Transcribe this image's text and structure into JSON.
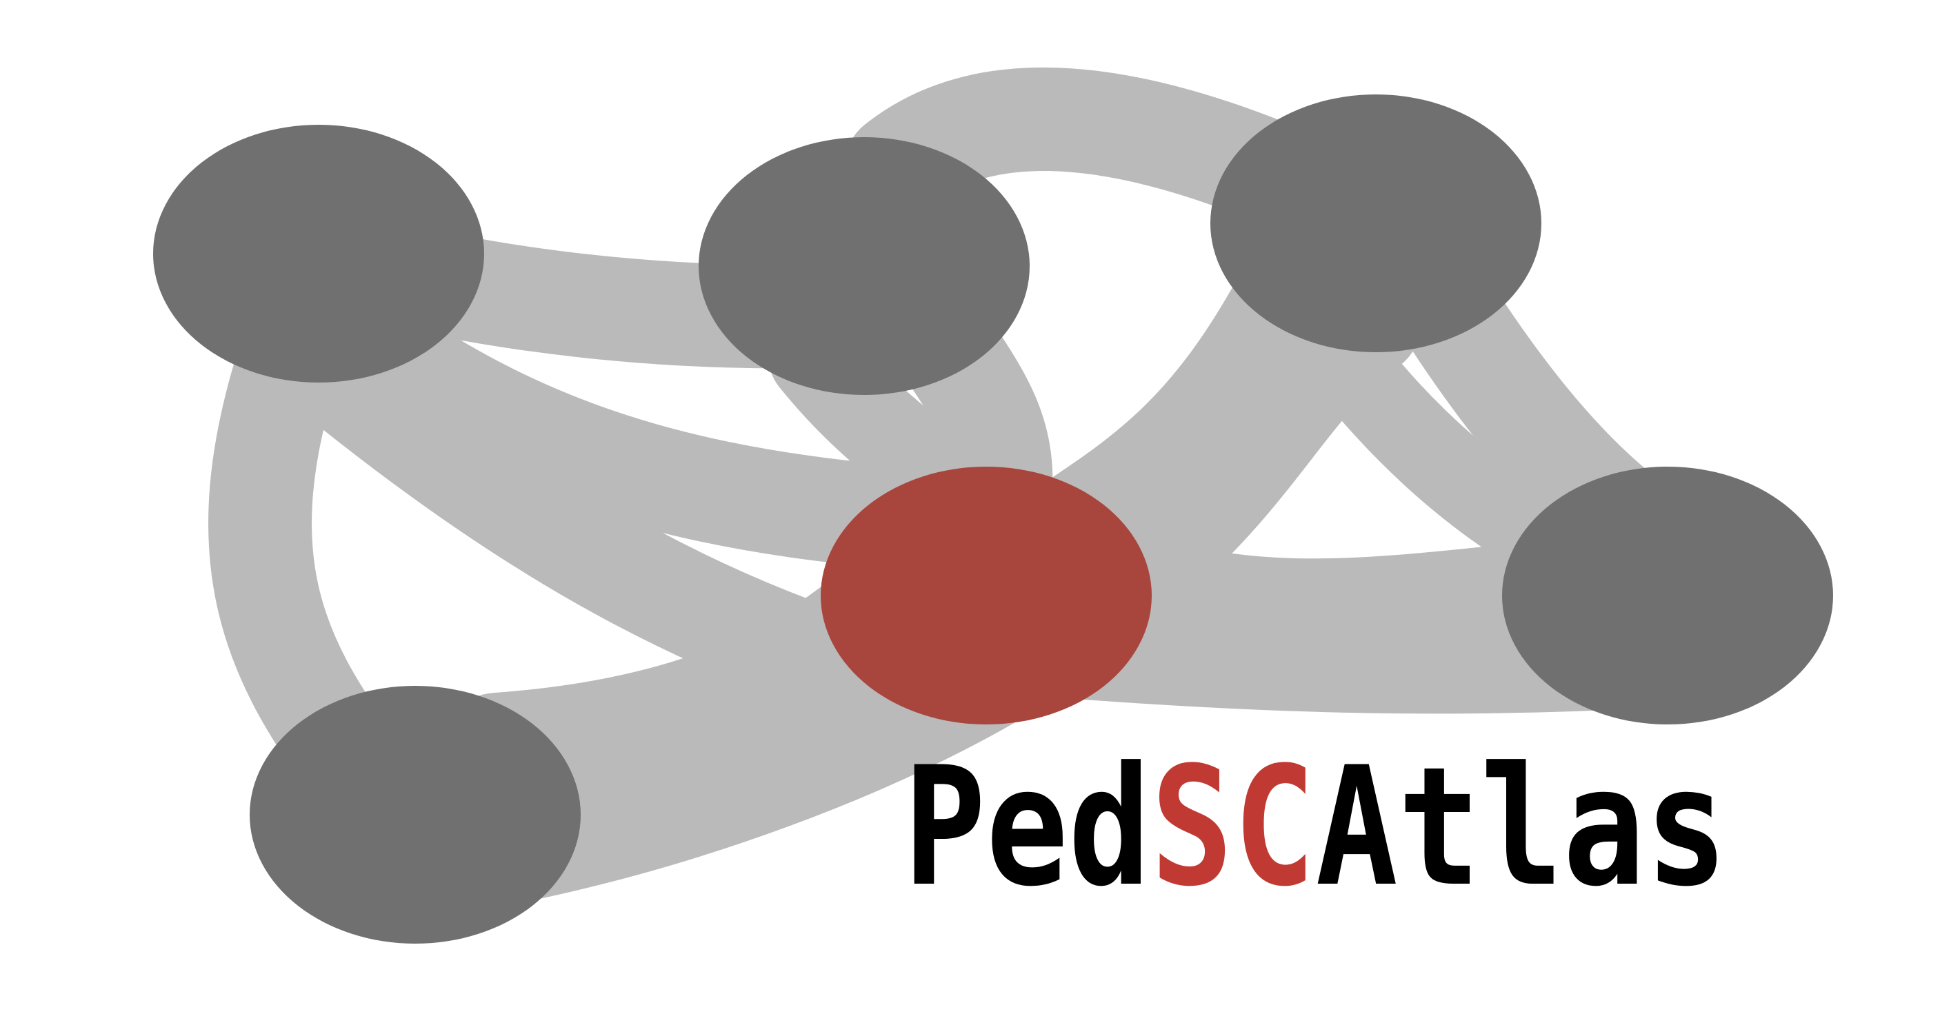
{
  "logo": {
    "wordmark_parts": [
      {
        "text": "Ped",
        "role": "plain"
      },
      {
        "text": "SC",
        "role": "accent"
      },
      {
        "text": "Atlas",
        "role": "plain"
      }
    ],
    "colors": {
      "background": "#ffffff",
      "edge": "#bababa",
      "node": "#707070",
      "highlight_node": "#a8463e",
      "wordmark_plain": "#000000",
      "wordmark_accent": "#c03a33"
    },
    "graph": {
      "node_count": 6,
      "highlighted_node": "center",
      "edge_count": 12
    }
  }
}
